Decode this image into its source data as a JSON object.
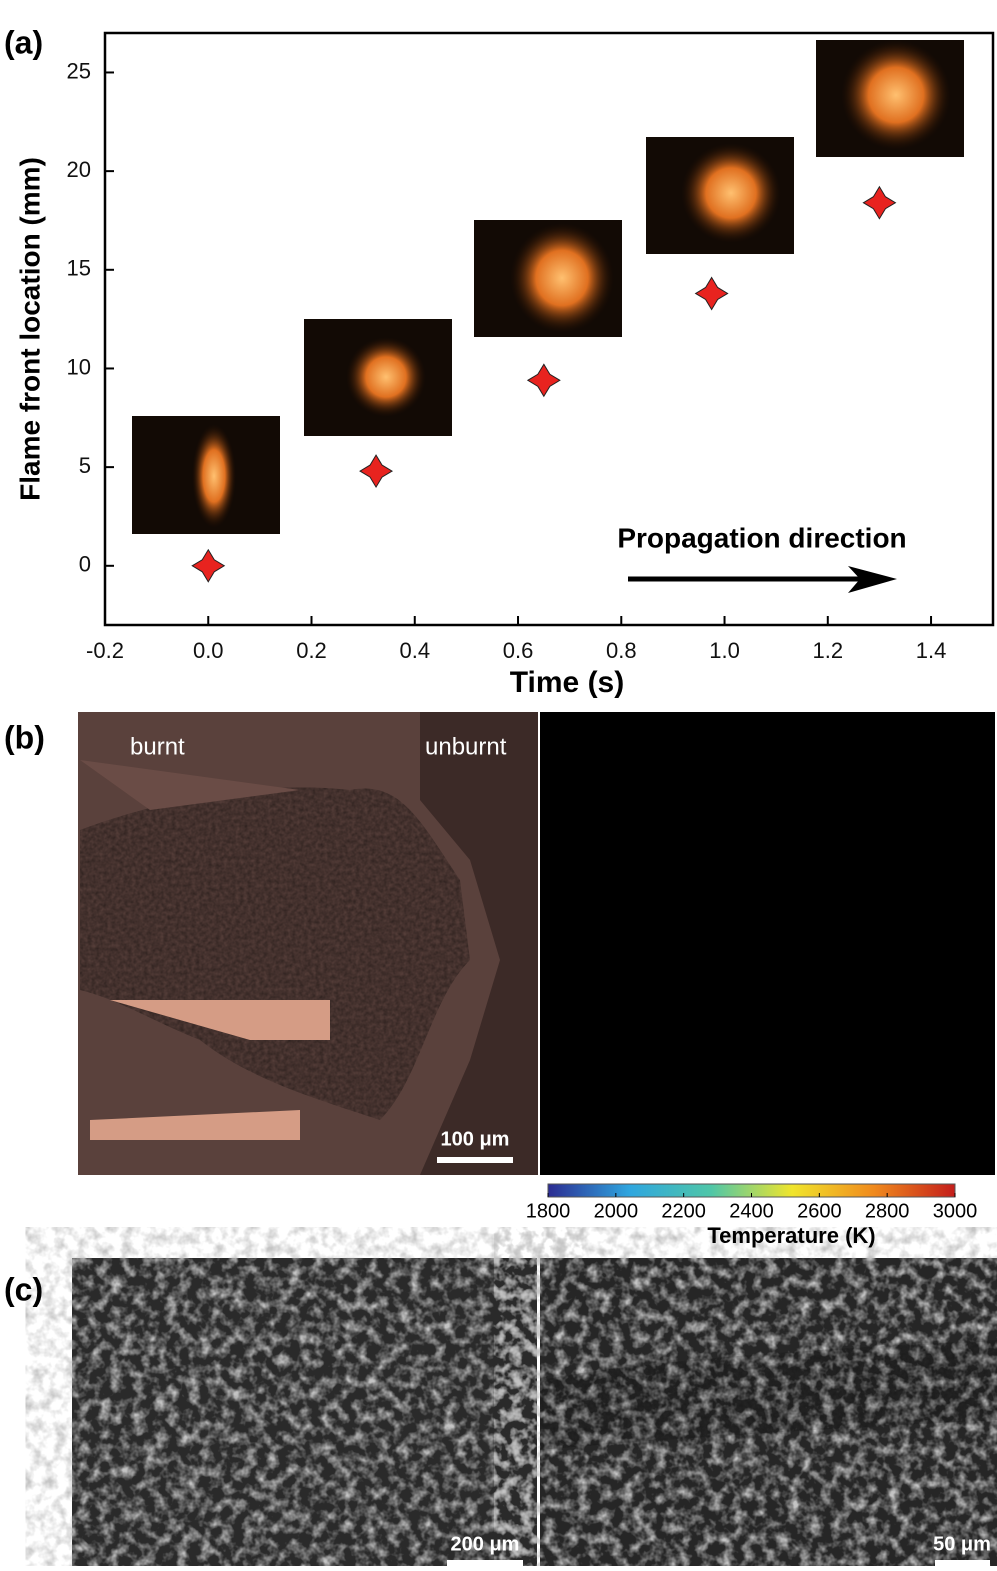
{
  "chart_data": [
    {
      "type": "scatter",
      "xlabel": "Time (s)",
      "ylabel": "Flame front location (mm)",
      "annotation": "Propagation direction",
      "x": [
        0,
        0.325,
        0.65,
        0.975,
        1.3
      ],
      "values": [
        0,
        4.8,
        9.4,
        13.8,
        18.4
      ],
      "color": "#e8231f",
      "xlim": [
        -0.2,
        1.52
      ],
      "ylim": [
        -3,
        27
      ],
      "xticks": [
        -0.2,
        {
          "value": 0,
          "label": "0.0"
        },
        0.2,
        0.4,
        0.6,
        0.8,
        {
          "value": 1,
          "label": "1.0"
        },
        1.2,
        1.4
      ],
      "yticks": [
        0,
        5,
        10,
        15,
        20,
        25
      ]
    },
    {
      "type": "colorbar",
      "xlabel": "Temperature (K)",
      "xlim": [
        1800,
        3000
      ],
      "xticks": [
        1800,
        2000,
        2200,
        2400,
        2600,
        2800,
        3000
      ],
      "colors": [
        "#2c2c92",
        "#2fa6df",
        "#4fc6a8",
        "#f0e52c",
        "#f08a1d",
        "#c41e1c"
      ]
    }
  ],
  "figure": {
    "panel_labels": [
      "(a)",
      "(b)",
      "(c)"
    ],
    "burnt": "burnt",
    "unburnt": "unburnt",
    "scale_b": "100 μm",
    "scale_c_left": "200 μm",
    "scale_c_right": "50 μm"
  }
}
